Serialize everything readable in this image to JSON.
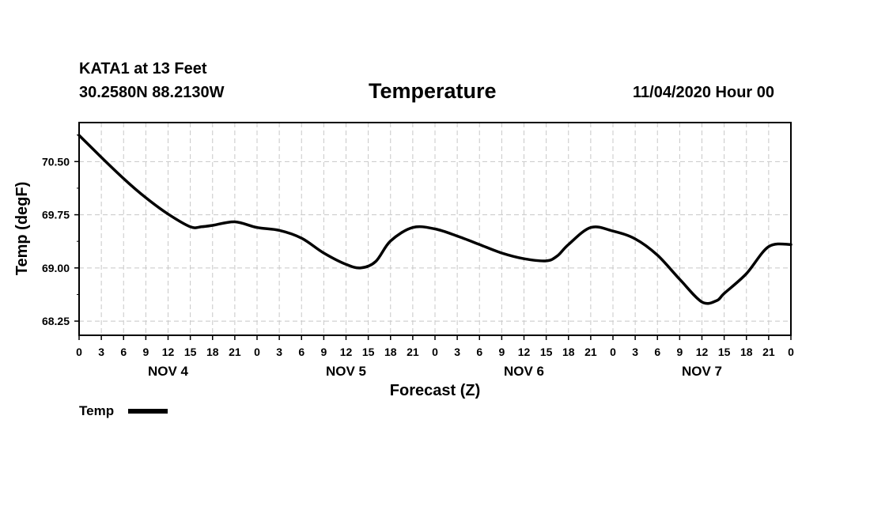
{
  "header": {
    "station": "KATA1 at 13 Feet",
    "coords": "30.2580N 88.2130W",
    "datetime": "11/04/2020 Hour 00"
  },
  "chart_data": {
    "type": "line",
    "title": "Temperature",
    "xlabel": "Forecast (Z)",
    "ylabel": "Temp (degF)",
    "x_units": "forecast hour from 11/04/2020 00Z",
    "xlim": [
      0,
      96
    ],
    "ylim": [
      68.05,
      71.05
    ],
    "yticks": [
      "70.50",
      "69.75",
      "69.00",
      "68.25"
    ],
    "ytick_values": [
      70.5,
      69.75,
      69.0,
      68.25
    ],
    "xtick_step_hours": 3,
    "xticks": [
      "0",
      "3",
      "6",
      "9",
      "12",
      "15",
      "18",
      "21",
      "0",
      "3",
      "6",
      "9",
      "12",
      "15",
      "18",
      "21",
      "0",
      "3",
      "6",
      "9",
      "12",
      "15",
      "18",
      "21",
      "0",
      "3",
      "6",
      "9",
      "12",
      "15",
      "18",
      "21",
      "0"
    ],
    "day_labels": [
      "NOV 4",
      "NOV 5",
      "NOV 6",
      "NOV 7"
    ],
    "day_label_hours": [
      12,
      36,
      60,
      84
    ],
    "grid": true,
    "legend": {
      "position": "bottom-left",
      "entries": [
        "Temp"
      ]
    },
    "series": [
      {
        "name": "Temp",
        "color": "#000000",
        "x": [
          0,
          3,
          6,
          9,
          12,
          15,
          16.5,
          18,
          21,
          24,
          27,
          30,
          33,
          36,
          38,
          40,
          42,
          45,
          48,
          51,
          54,
          57,
          60,
          63,
          64.5,
          66,
          69,
          72,
          75,
          78,
          81,
          84,
          86,
          87,
          90,
          93,
          96
        ],
        "y": [
          70.87,
          70.56,
          70.26,
          69.99,
          69.76,
          69.58,
          69.58,
          69.6,
          69.65,
          69.57,
          69.53,
          69.42,
          69.21,
          69.05,
          69.0,
          69.09,
          69.38,
          69.57,
          69.55,
          69.45,
          69.33,
          69.21,
          69.13,
          69.1,
          69.17,
          69.33,
          69.57,
          69.52,
          69.41,
          69.18,
          68.84,
          68.52,
          68.54,
          68.64,
          68.92,
          69.3,
          69.33
        ]
      }
    ]
  }
}
